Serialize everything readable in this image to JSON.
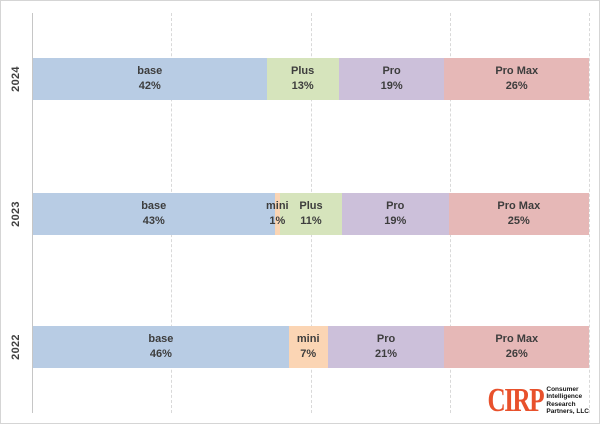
{
  "chart_data": {
    "type": "bar",
    "orientation": "horizontal-stacked",
    "title": "",
    "xlabel": "",
    "ylabel": "",
    "categories": [
      "2024",
      "2023",
      "2022"
    ],
    "series": [
      {
        "name": "base",
        "values": [
          42,
          43,
          46
        ]
      },
      {
        "name": "mini",
        "values": [
          0,
          1,
          7
        ]
      },
      {
        "name": "Plus",
        "values": [
          13,
          11,
          0
        ]
      },
      {
        "name": "Pro",
        "values": [
          19,
          19,
          21
        ]
      },
      {
        "name": "Pro Max",
        "values": [
          26,
          25,
          26
        ]
      }
    ],
    "xlim": [
      0,
      100
    ],
    "gridlines_percent": [
      25,
      50,
      75,
      100
    ],
    "grid_style": "dashed-vertical",
    "legend": "none",
    "data_labels": "name and percent centered inside each segment",
    "y_tick_labels_rotated_degrees": 90
  },
  "chart": {
    "palette": {
      "base": "#B8CCE4",
      "mini": "#FBD5B4",
      "Plus": "#D6E4BC",
      "Pro": "#CCC0DA",
      "Pro Max": "#E6B8B7"
    },
    "text_color": "#3D3D3D",
    "axis_color": "#C6C6C6",
    "gridline_color": "#D9D9D9",
    "gridlines": [
      25,
      50,
      75,
      100
    ],
    "display_rows": [
      {
        "year": "2024",
        "segments": [
          {
            "key": "base",
            "name": "base",
            "percent": "42%",
            "value": 42
          },
          {
            "key": "Plus",
            "name": "Plus",
            "percent": "13%",
            "value": 13
          },
          {
            "key": "Pro",
            "name": "Pro",
            "percent": "19%",
            "value": 19
          },
          {
            "key": "Pro Max",
            "name": "Pro Max",
            "percent": "26%",
            "value": 26
          }
        ]
      },
      {
        "year": "2023",
        "segments": [
          {
            "key": "base",
            "name": "base",
            "percent": "43%",
            "value": 43
          },
          {
            "key": "mini",
            "name": "mini",
            "percent": "1%",
            "value": 1
          },
          {
            "key": "Plus",
            "name": "Plus",
            "percent": "11%",
            "value": 11
          },
          {
            "key": "Pro",
            "name": "Pro",
            "percent": "19%",
            "value": 19
          },
          {
            "key": "Pro Max",
            "name": "Pro Max",
            "percent": "25%",
            "value": 25
          }
        ]
      },
      {
        "year": "2022",
        "segments": [
          {
            "key": "base",
            "name": "base",
            "percent": "46%",
            "value": 46
          },
          {
            "key": "mini",
            "name": "mini",
            "percent": "7%",
            "value": 7
          },
          {
            "key": "Pro",
            "name": "Pro",
            "percent": "21%",
            "value": 21
          },
          {
            "key": "Pro Max",
            "name": "Pro Max",
            "percent": "26%",
            "value": 26
          }
        ]
      }
    ]
  },
  "logo": {
    "brand": "CIRP",
    "brand_color": "#E8512C",
    "lines": [
      "Consumer",
      "Intelligence",
      "Research",
      "Partners, LLC"
    ]
  }
}
